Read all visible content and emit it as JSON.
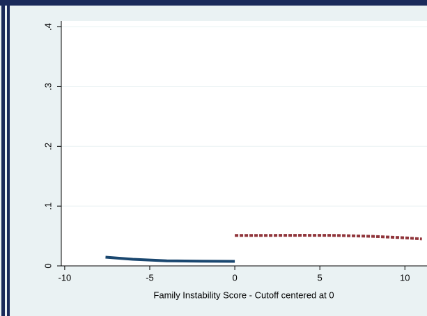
{
  "chart_data": {
    "type": "line",
    "xlabel": "Family Instability Score - Cutoff centered at 0",
    "xlim": [
      -10.2,
      11.3
    ],
    "xticks": [
      -10,
      -5,
      0,
      5,
      10
    ],
    "ylim": [
      0,
      0.41
    ],
    "yticks": [
      0,
      {
        "value": 0.1,
        "label": ".1"
      },
      {
        "value": 0.2,
        "label": ".2"
      },
      {
        "value": 0.3,
        "label": ".3"
      },
      {
        "value": 0.4,
        "label": ".4"
      }
    ],
    "grid": true,
    "series": [
      {
        "color": "#1a476f",
        "dash": false,
        "x": [
          -7.6,
          -6,
          -4,
          -2,
          0
        ],
        "values": [
          0.0145,
          0.011,
          0.0085,
          0.0078,
          0.0075
        ]
      },
      {
        "color": "#90353b",
        "dash": true,
        "x": [
          0,
          2,
          4,
          6,
          8,
          10,
          11
        ],
        "values": [
          0.051,
          0.051,
          0.0512,
          0.051,
          0.0495,
          0.047,
          0.045
        ]
      }
    ]
  }
}
